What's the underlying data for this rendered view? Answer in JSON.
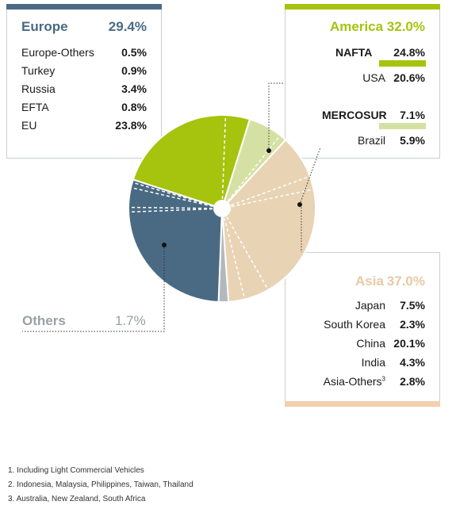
{
  "colors": {
    "europe": "#4a6a83",
    "america": "#a6c30e",
    "america_light": "#d5e1a4",
    "asia": "#e8d3b4",
    "asia_bar": "#f2cfae",
    "others": "#b3b8bd",
    "others_text": "#9aa0a6",
    "europe_bar": "#4a6a83"
  },
  "chart_data": {
    "type": "pie",
    "title": "",
    "groups": [
      {
        "name": "Europe",
        "value": "29.4%",
        "items": [
          {
            "label": "Europe-Others",
            "value": "0.5%"
          },
          {
            "label": "Turkey",
            "value": "0.9%"
          },
          {
            "label": "Russia",
            "value": "3.4%"
          },
          {
            "label": "EFTA",
            "value": "0.8%"
          },
          {
            "label": "EU",
            "value": "23.8%"
          }
        ]
      },
      {
        "name": "America",
        "value": "32.0%",
        "subgroups": [
          {
            "name": "NAFTA",
            "value": "24.8%",
            "items": [
              {
                "label": "USA",
                "value": "20.6%"
              }
            ]
          },
          {
            "name": "MERCOSUR",
            "value": "7.1%",
            "items": [
              {
                "label": "Brazil",
                "value": "5.9%"
              }
            ]
          }
        ]
      },
      {
        "name": "Asia",
        "value": "37.0%",
        "items": [
          {
            "label": "Japan",
            "value": "7.5%"
          },
          {
            "label": "South Korea",
            "value": "2.3%"
          },
          {
            "label": "China",
            "value": "20.1%"
          },
          {
            "label": "India",
            "value": "4.3%"
          },
          {
            "label": "Asia-Others",
            "sup": "3",
            "value": "2.8%"
          }
        ]
      },
      {
        "name": "Others",
        "value": "1.7%"
      }
    ],
    "slices": [
      {
        "group": "america",
        "value": 24.8,
        "sublines": [
          20.6
        ]
      },
      {
        "group": "america_light",
        "value": 7.1,
        "sublines": [
          5.9
        ]
      },
      {
        "group": "asia",
        "value": 37.0,
        "sublines": [
          7.5,
          2.3,
          20.1,
          4.3
        ]
      },
      {
        "group": "others",
        "value": 1.7,
        "sublines": []
      },
      {
        "group": "europe",
        "value": 29.4,
        "sublines": [
          23.8,
          0.8,
          3.4,
          0.9
        ]
      }
    ]
  },
  "footnotes": [
    "1. Including Light Commercial Vehicles",
    "2. Indonesia, Malaysia, Philippines, Taiwan, Thailand",
    "3. Australia, New Zealand, South Africa"
  ]
}
